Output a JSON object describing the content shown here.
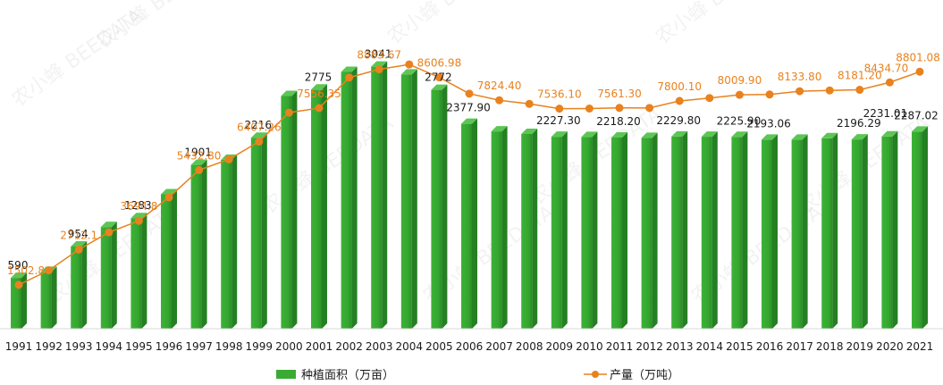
{
  "chart_data": {
    "type": "bar+line",
    "categories": [
      "1991",
      "1992",
      "1993",
      "1994",
      "1995",
      "1996",
      "1997",
      "1998",
      "1999",
      "2000",
      "2001",
      "2002",
      "2003",
      "2004",
      "2005",
      "2006",
      "2007",
      "2008",
      "2009",
      "2010",
      "2011",
      "2012",
      "2013",
      "2014",
      "2015",
      "2016",
      "2017",
      "2018",
      "2019",
      "2020",
      "2021"
    ],
    "series": [
      {
        "name": "种植面积（万亩）",
        "type": "bar",
        "color": "#3aaa35",
        "values": [
          590,
          660,
          954,
          1180,
          1283,
          1560,
          1901,
          1960,
          2216,
          2700,
          2775,
          2980,
          3041,
          2950,
          2772,
          2377.9,
          2290,
          2260,
          2227.3,
          2225,
          2218.2,
          2215,
          2229.8,
          2228,
          2225.9,
          2193.06,
          2193.06,
          2210,
          2196.29,
          2231.01,
          2287.02
        ],
        "labels": [
          "590",
          "",
          "954",
          "",
          "1283",
          "",
          "1901",
          "",
          "2216",
          "",
          "2775",
          "",
          "3041",
          "",
          "2772",
          "2377.90",
          "",
          "",
          "2227.30",
          "",
          "2218.20",
          "",
          "2229.80",
          "",
          "2225.90",
          "2193.06",
          "",
          "",
          "2196.29",
          "2231.01",
          "2287.02"
        ]
      },
      {
        "name": "产量（万吨）",
        "type": "line",
        "color": "#e8821e",
        "values": [
          1502.8,
          2000,
          2712.1,
          3300,
          3694.8,
          4500,
          5432.8,
          5800,
          6407.26,
          7400,
          7556.35,
          8600,
          8883.67,
          9050,
          8606.98,
          8050,
          7824.4,
          7700,
          7536.1,
          7540,
          7561.3,
          7560,
          7800.1,
          7900,
          8009.9,
          8020,
          8133.8,
          8160,
          8181.2,
          8434.7,
          8801.08
        ],
        "labels": [
          "1502.8",
          "",
          "2712.1",
          "",
          "3694.8",
          "",
          "5432.80",
          "",
          "6407.26",
          "",
          "7556.35",
          "",
          "8883.67",
          "",
          "8606.98",
          "",
          "7824.40",
          "",
          "7536.10",
          "",
          "7561.30",
          "",
          "7800.10",
          "",
          "8009.90",
          "",
          "8133.80",
          "",
          "8181.20",
          "8434.70",
          "8801.08"
        ]
      }
    ],
    "bar_ylim": [
      0,
      3400
    ],
    "line_ylim": [
      0,
      10400
    ],
    "legend": "bottom-center",
    "watermark": "农小蜂 BEEDATA"
  }
}
